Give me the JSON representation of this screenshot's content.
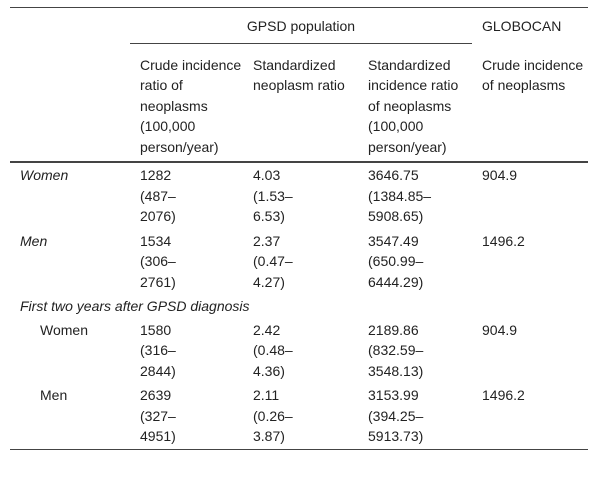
{
  "header": {
    "group_gpsd": "GPSD population",
    "group_globocan": "GLOBOCAN",
    "columns": [
      "Crude incidence ratio of neoplasms (100,000 person/year)",
      "Standardized neoplasm ratio",
      "Standardized incidence ratio of neoplasms (100,000 person/year)",
      "Crude incidence of neoplasms"
    ]
  },
  "rows": [
    {
      "label": "Women",
      "values": [
        "1282 (487–2076)",
        "4.03 (1.53–6.53)",
        "3646.75 (1384.85–5908.65)",
        "904.9"
      ]
    },
    {
      "label": "Men",
      "values": [
        "1534 (306–2761)",
        "2.37 (0.47–4.27)",
        "3547.49 (650.99–6444.29)",
        "1496.2"
      ]
    }
  ],
  "section": {
    "title": "First two years after GPSD diagnosis",
    "rows": [
      {
        "label": "Women",
        "values": [
          "1580 (316–2844)",
          "2.42 (0.48–4.36)",
          "2189.86 (832.59–3548.13)",
          "904.9"
        ]
      },
      {
        "label": "Men",
        "values": [
          "2639 (327–4951)",
          "2.11 (0.26–3.87)",
          "3153.99 (394.25–5913.73)",
          "1496.2"
        ]
      }
    ]
  }
}
